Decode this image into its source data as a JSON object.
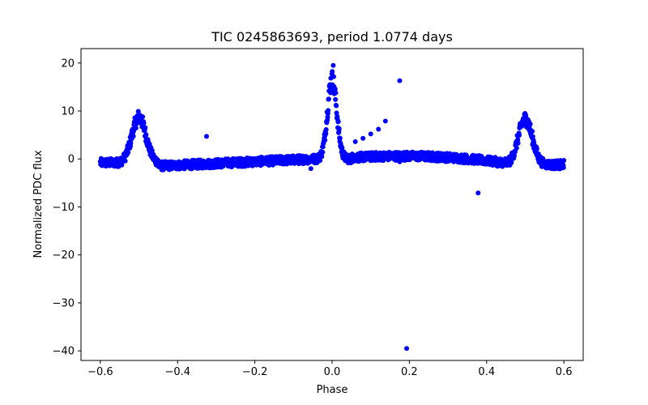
{
  "chart_data": {
    "type": "scatter",
    "title": "TIC 0245863693, period 1.0774 days",
    "xlabel": "Phase",
    "ylabel": "Normalized PDC flux",
    "xlim": [
      -0.65,
      0.65
    ],
    "ylim": [
      -42,
      23
    ],
    "xticks": [
      -0.6,
      -0.4,
      -0.2,
      0.0,
      0.2,
      0.4,
      0.6
    ],
    "xtick_labels": [
      "−0.6",
      "−0.4",
      "−0.2",
      "0.0",
      "0.2",
      "0.4",
      "0.6"
    ],
    "yticks": [
      20,
      10,
      0,
      -10,
      -20,
      -30,
      -40
    ],
    "ytick_labels": [
      "20",
      "10",
      "0",
      "−10",
      "−20",
      "−30",
      "−40"
    ],
    "grid": false,
    "marker_color": "#0000ff",
    "outliers": [
      {
        "x": -0.325,
        "y": 4.7
      },
      {
        "x": -0.055,
        "y": -2.0
      },
      {
        "x": 0.003,
        "y": 19.5
      },
      {
        "x": 0.06,
        "y": 3.6
      },
      {
        "x": 0.08,
        "y": 4.3
      },
      {
        "x": 0.1,
        "y": 5.2
      },
      {
        "x": 0.12,
        "y": 6.2
      },
      {
        "x": 0.138,
        "y": 7.9
      },
      {
        "x": 0.175,
        "y": 16.3
      },
      {
        "x": 0.175,
        "y": -0.6
      },
      {
        "x": 0.193,
        "y": -39.5
      },
      {
        "x": 0.378,
        "y": -7.1
      }
    ]
  }
}
